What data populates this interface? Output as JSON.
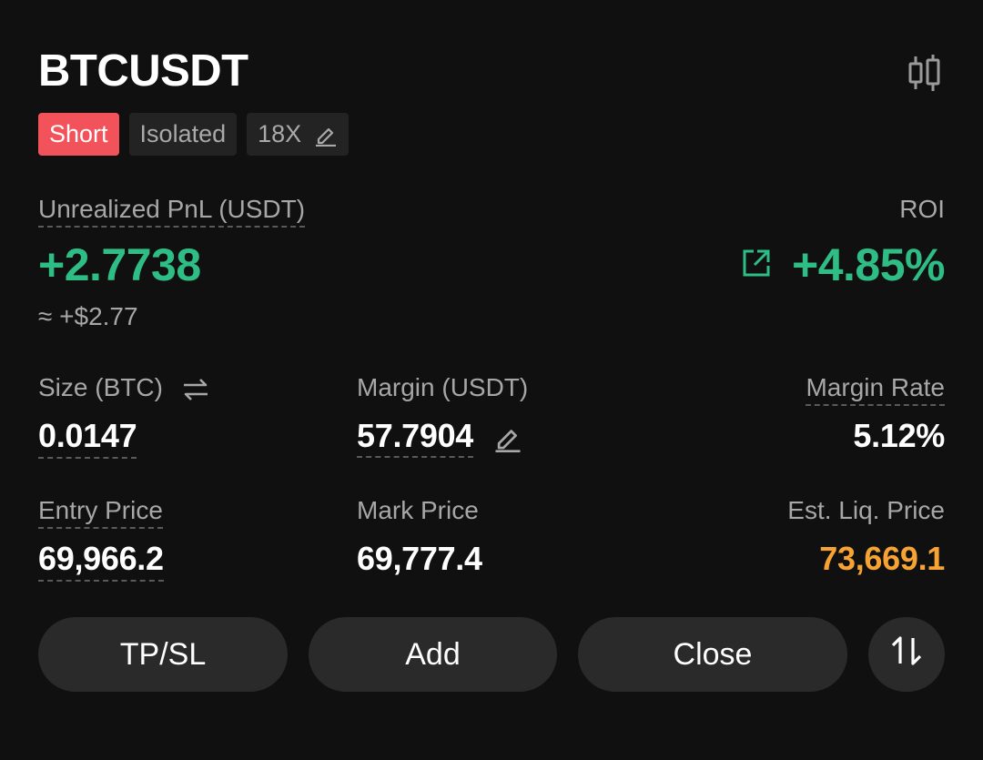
{
  "symbol": "BTCUSDT",
  "tags": {
    "side": "Short",
    "margin_mode": "Isolated",
    "leverage": "18X"
  },
  "pnl": {
    "label": "Unrealized PnL (USDT)",
    "value": "+2.7738",
    "usd_approx": "≈ +$2.77"
  },
  "roi": {
    "label": "ROI",
    "value": "+4.85%"
  },
  "stats": {
    "size_label": "Size (BTC)",
    "size_value": "0.0147",
    "margin_label": "Margin (USDT)",
    "margin_value": "57.7904",
    "margin_rate_label": "Margin Rate",
    "margin_rate_value": "5.12%",
    "entry_label": "Entry Price",
    "entry_value": "69,966.2",
    "mark_label": "Mark Price",
    "mark_value": "69,777.4",
    "liq_label": "Est. Liq. Price",
    "liq_value": "73,669.1"
  },
  "actions": {
    "tpsl": "TP/SL",
    "add": "Add",
    "close": "Close"
  },
  "colors": {
    "background": "#101010",
    "short_badge": "#f2525a",
    "profit_green": "#2ebd85",
    "liq_orange": "#f7a334",
    "button_bg": "#2a2a2a"
  },
  "icons": {
    "chart": "candlestick-chart-icon",
    "edit": "pencil-edit-icon",
    "share": "share-export-icon",
    "swap_units": "swap-arrows-icon",
    "reverse": "reverse-position-icon"
  }
}
